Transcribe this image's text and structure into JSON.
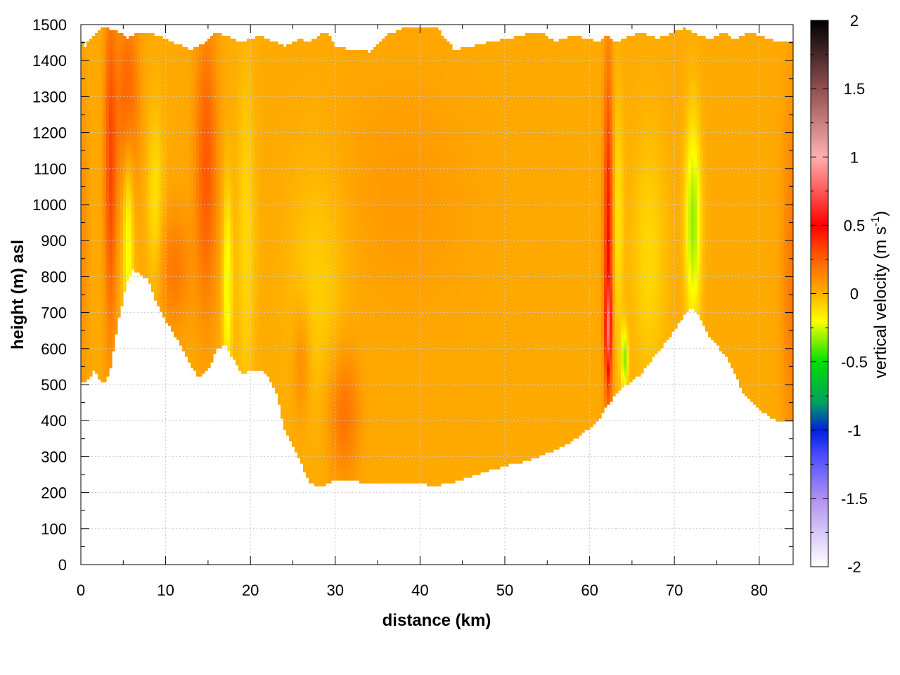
{
  "chart_data": {
    "type": "heatmap",
    "title": "",
    "xlabel": "distance (km)",
    "ylabel": "height (m) asl",
    "xlim": [
      0,
      84
    ],
    "ylim": [
      0,
      1500
    ],
    "x_ticks": [
      0,
      10,
      20,
      30,
      40,
      50,
      60,
      70,
      80
    ],
    "y_ticks": [
      0,
      100,
      200,
      300,
      400,
      500,
      600,
      700,
      800,
      900,
      1000,
      1100,
      1200,
      1300,
      1400,
      1500
    ],
    "grid": true,
    "colorbar": {
      "label_main": "vertical velocity (m s",
      "label_sup": "-1",
      "label_close": ")",
      "range": [
        -2,
        2
      ],
      "ticks": [
        2,
        1.5,
        1,
        0.5,
        0,
        -0.5,
        -1,
        -1.5,
        -2
      ],
      "stops": [
        {
          "value": -2.0,
          "color": "#ffffff"
        },
        {
          "value": -1.5,
          "color": "#b090f0"
        },
        {
          "value": -1.2,
          "color": "#5050ff"
        },
        {
          "value": -1.0,
          "color": "#0020e0"
        },
        {
          "value": -0.8,
          "color": "#00a060"
        },
        {
          "value": -0.5,
          "color": "#00e000"
        },
        {
          "value": -0.2,
          "color": "#ffff00"
        },
        {
          "value": 0.0,
          "color": "#ffb000"
        },
        {
          "value": 0.3,
          "color": "#ff5000"
        },
        {
          "value": 0.5,
          "color": "#ff0000"
        },
        {
          "value": 1.0,
          "color": "#ffb0b0"
        },
        {
          "value": 1.5,
          "color": "#905050"
        },
        {
          "value": 2.0,
          "color": "#000000"
        }
      ]
    },
    "terrain": {
      "x": [
        0,
        0.5,
        1,
        1.5,
        2,
        2.5,
        3,
        3.5,
        4,
        4.5,
        5,
        5.5,
        6,
        7,
        8,
        9,
        10,
        11,
        12,
        13,
        14,
        15,
        16,
        17,
        18,
        19,
        20,
        21,
        22,
        23,
        24,
        25,
        26,
        27,
        28,
        29,
        30,
        32,
        34,
        36,
        38,
        40,
        42,
        44,
        46,
        48,
        50,
        52,
        54,
        56,
        58,
        60,
        61,
        62,
        63,
        64,
        65,
        66,
        67,
        68,
        69,
        70,
        71,
        72,
        73,
        74,
        75,
        76,
        77,
        78,
        79,
        80,
        81,
        82,
        83,
        84
      ],
      "y": [
        510,
        505,
        520,
        540,
        525,
        505,
        510,
        550,
        620,
        690,
        740,
        790,
        820,
        810,
        790,
        720,
        680,
        640,
        600,
        550,
        520,
        540,
        600,
        610,
        570,
        530,
        540,
        540,
        530,
        480,
        380,
        330,
        280,
        230,
        215,
        225,
        235,
        235,
        225,
        225,
        225,
        225,
        220,
        230,
        245,
        260,
        275,
        285,
        300,
        320,
        345,
        380,
        400,
        440,
        470,
        495,
        510,
        530,
        560,
        590,
        620,
        650,
        690,
        715,
        690,
        640,
        610,
        580,
        540,
        480,
        455,
        430,
        415,
        400,
        400,
        400
      ],
      "top_y": [
        1455,
        1440,
        1460,
        1470,
        1480,
        1490,
        1495,
        1485,
        1490,
        1480,
        1470,
        1460,
        1470,
        1480,
        1480,
        1470,
        1460,
        1450,
        1440,
        1430,
        1440,
        1460,
        1480,
        1470,
        1460,
        1450,
        1460,
        1470,
        1460,
        1450,
        1440,
        1450,
        1460,
        1450,
        1470,
        1480,
        1440,
        1430,
        1425,
        1470,
        1490,
        1495,
        1490,
        1430,
        1440,
        1450,
        1460,
        1470,
        1480,
        1455,
        1470,
        1460,
        1450,
        1470,
        1450,
        1460,
        1470,
        1480,
        1470,
        1460,
        1470,
        1480,
        1490,
        1480,
        1470,
        1460,
        1470,
        1480,
        1460,
        1470,
        1480,
        1470,
        1460,
        1455,
        1455,
        1455
      ]
    },
    "features": [
      {
        "x": 3.5,
        "y": 1100,
        "sx": 0.5,
        "sy": 330,
        "v": 0.3
      },
      {
        "x": 5.5,
        "y": 1290,
        "sx": 0.9,
        "sy": 180,
        "v": 0.25
      },
      {
        "x": 5.6,
        "y": 900,
        "sx": 0.45,
        "sy": 230,
        "v": -0.25
      },
      {
        "x": 8.8,
        "y": 1000,
        "sx": 0.7,
        "sy": 180,
        "v": -0.15
      },
      {
        "x": 11,
        "y": 820,
        "sx": 1.4,
        "sy": 120,
        "v": 0.15
      },
      {
        "x": 14.8,
        "y": 1100,
        "sx": 0.9,
        "sy": 280,
        "v": 0.25
      },
      {
        "x": 17.3,
        "y": 770,
        "sx": 0.4,
        "sy": 200,
        "v": -0.25
      },
      {
        "x": 19.5,
        "y": 900,
        "sx": 0.8,
        "sy": 350,
        "v": -0.12
      },
      {
        "x": 26,
        "y": 560,
        "sx": 0.7,
        "sy": 110,
        "v": 0.12
      },
      {
        "x": 31,
        "y": 420,
        "sx": 1.3,
        "sy": 130,
        "v": 0.18
      },
      {
        "x": 28,
        "y": 780,
        "sx": 2.5,
        "sy": 250,
        "v": -0.1
      },
      {
        "x": 38,
        "y": 1030,
        "sx": 6,
        "sy": 230,
        "v": 0.05
      },
      {
        "x": 62.2,
        "y": 900,
        "sx": 0.38,
        "sy": 330,
        "v": 0.45
      },
      {
        "x": 62.2,
        "y": 650,
        "sx": 0.22,
        "sy": 90,
        "v": 0.5
      },
      {
        "x": 64.1,
        "y": 570,
        "sx": 0.3,
        "sy": 60,
        "v": -0.35
      },
      {
        "x": 63.3,
        "y": 950,
        "sx": 0.5,
        "sy": 250,
        "v": -0.15
      },
      {
        "x": 72.2,
        "y": 950,
        "sx": 0.65,
        "sy": 200,
        "v": -0.35
      },
      {
        "x": 67,
        "y": 850,
        "sx": 1.5,
        "sy": 250,
        "v": -0.12
      },
      {
        "x": 83.8,
        "y": 800,
        "sx": 0.8,
        "sy": 350,
        "v": 0.15
      },
      {
        "x": 0.4,
        "y": 900,
        "sx": 0.4,
        "sy": 300,
        "v": 0.08
      }
    ]
  }
}
